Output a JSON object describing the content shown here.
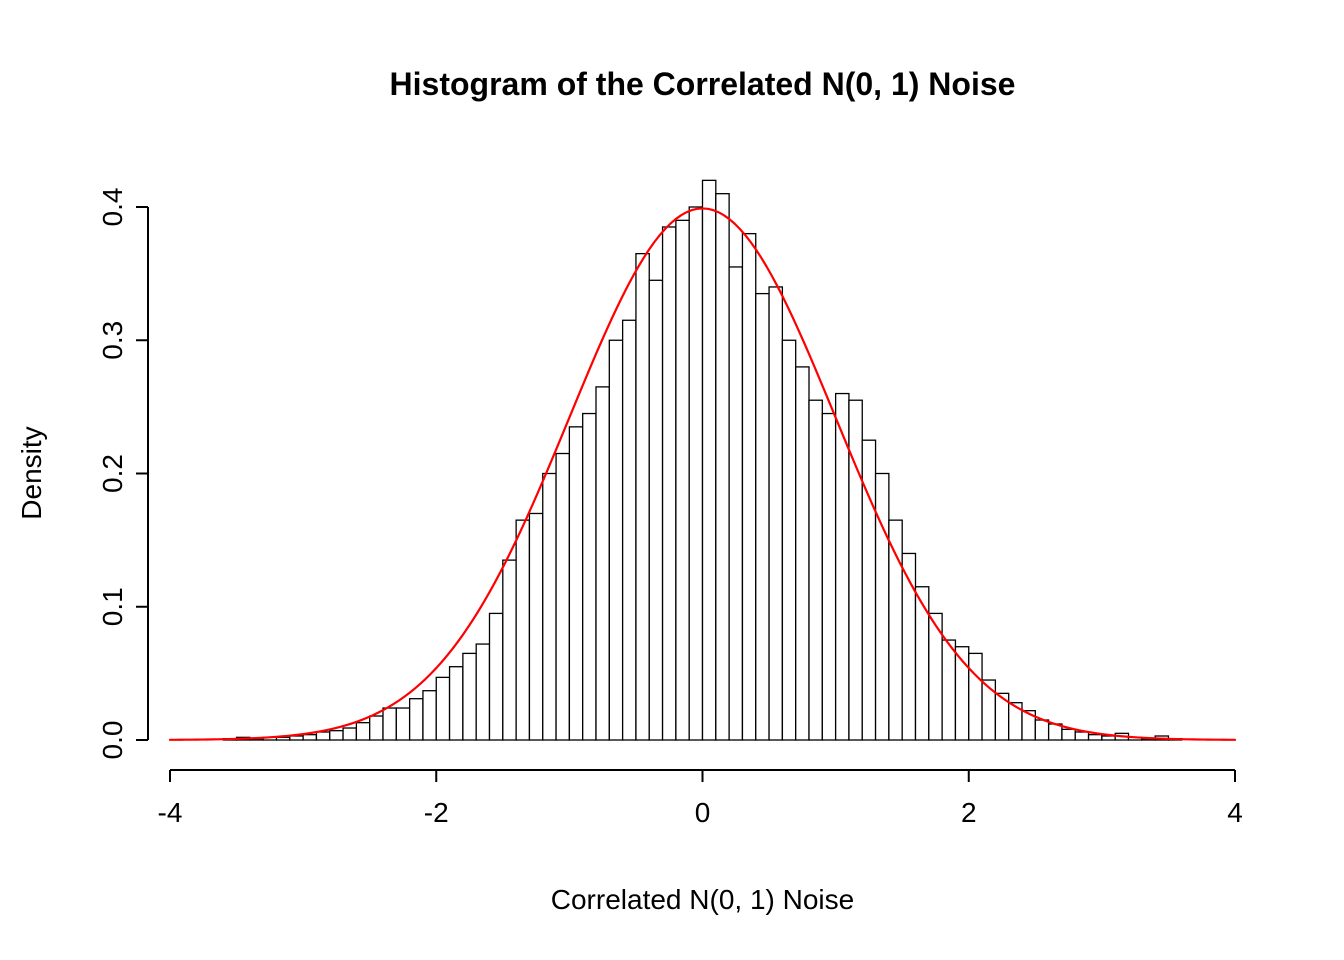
{
  "title": "Histogram of the Correlated N(0, 1) Noise",
  "chart_data": {
    "type": "bar",
    "subtype": "histogram-with-density-curve",
    "title": "Histogram of the Correlated N(0, 1) Noise",
    "xlabel": "Correlated N(0, 1) Noise",
    "ylabel": "Density",
    "xlim": [
      -4,
      4
    ],
    "ylim": [
      0,
      0.4
    ],
    "x_tick_values": [
      -4,
      -2,
      0,
      2,
      4
    ],
    "x_tick_labels": [
      "-4",
      "-2",
      "0",
      "2",
      "4"
    ],
    "y_tick_values": [
      0.0,
      0.1,
      0.2,
      0.3,
      0.4
    ],
    "y_tick_labels": [
      "0.0",
      "0.1",
      "0.2",
      "0.3",
      "0.4"
    ],
    "grid": false,
    "legend": "none",
    "bar_fill": "#ffffff",
    "bar_stroke": "#000000",
    "bin_start": -3.6,
    "bin_width": 0.1,
    "bin_densities": [
      0.001,
      0.002,
      0.001,
      0.002,
      0.002,
      0.003,
      0.004,
      0.006,
      0.007,
      0.009,
      0.013,
      0.018,
      0.024,
      0.024,
      0.031,
      0.037,
      0.047,
      0.055,
      0.065,
      0.072,
      0.095,
      0.135,
      0.165,
      0.17,
      0.2,
      0.215,
      0.235,
      0.245,
      0.265,
      0.3,
      0.315,
      0.365,
      0.345,
      0.385,
      0.39,
      0.4,
      0.42,
      0.41,
      0.355,
      0.38,
      0.335,
      0.34,
      0.3,
      0.28,
      0.255,
      0.245,
      0.26,
      0.255,
      0.225,
      0.2,
      0.165,
      0.14,
      0.115,
      0.095,
      0.075,
      0.07,
      0.065,
      0.045,
      0.035,
      0.028,
      0.022,
      0.015,
      0.012,
      0.008,
      0.006,
      0.004,
      0.003,
      0.005,
      0.002,
      0.001,
      0.003,
      0.001
    ],
    "curve": {
      "name": "standard-normal-density",
      "color": "#ff0000",
      "mean": 0,
      "sd": 1,
      "peak": 0.3989
    }
  }
}
